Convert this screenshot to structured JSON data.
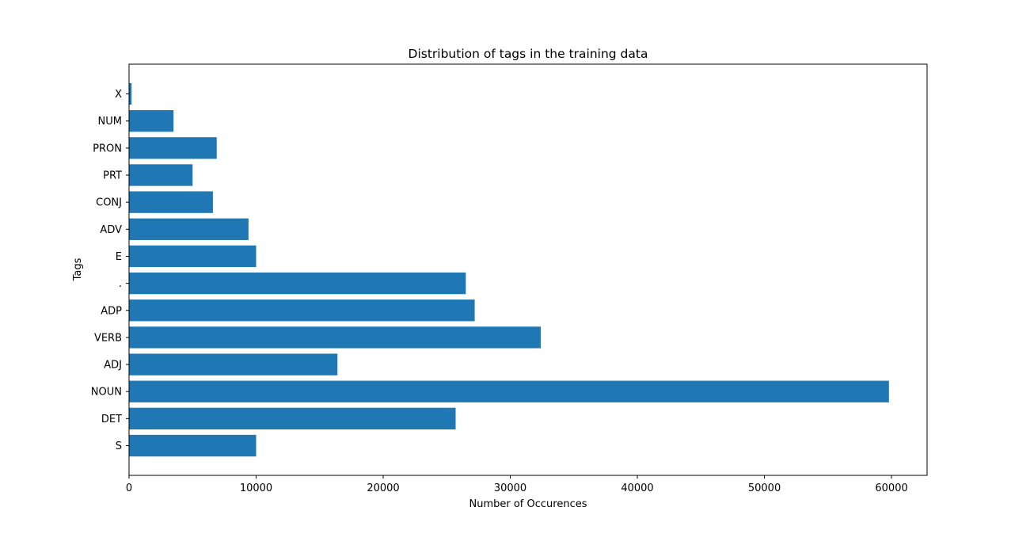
{
  "chart_data": {
    "type": "bar",
    "orientation": "horizontal",
    "title": "Distribution of tags in the training data",
    "xlabel": "Number of Occurences",
    "ylabel": "Tags",
    "categories": [
      "S",
      "DET",
      "NOUN",
      "ADJ",
      "VERB",
      "ADP",
      ".",
      "E",
      "ADV",
      "CONJ",
      "PRT",
      "PRON",
      "NUM",
      "X"
    ],
    "values": [
      10000,
      25700,
      59800,
      16400,
      32400,
      27200,
      26500,
      10000,
      9400,
      6600,
      5000,
      6900,
      3500,
      200
    ],
    "xlim": [
      0,
      62800
    ],
    "xticks": [
      0,
      10000,
      20000,
      30000,
      40000,
      50000,
      60000
    ],
    "bar_color": "#1f77b4",
    "grid": false,
    "legend": "none"
  }
}
